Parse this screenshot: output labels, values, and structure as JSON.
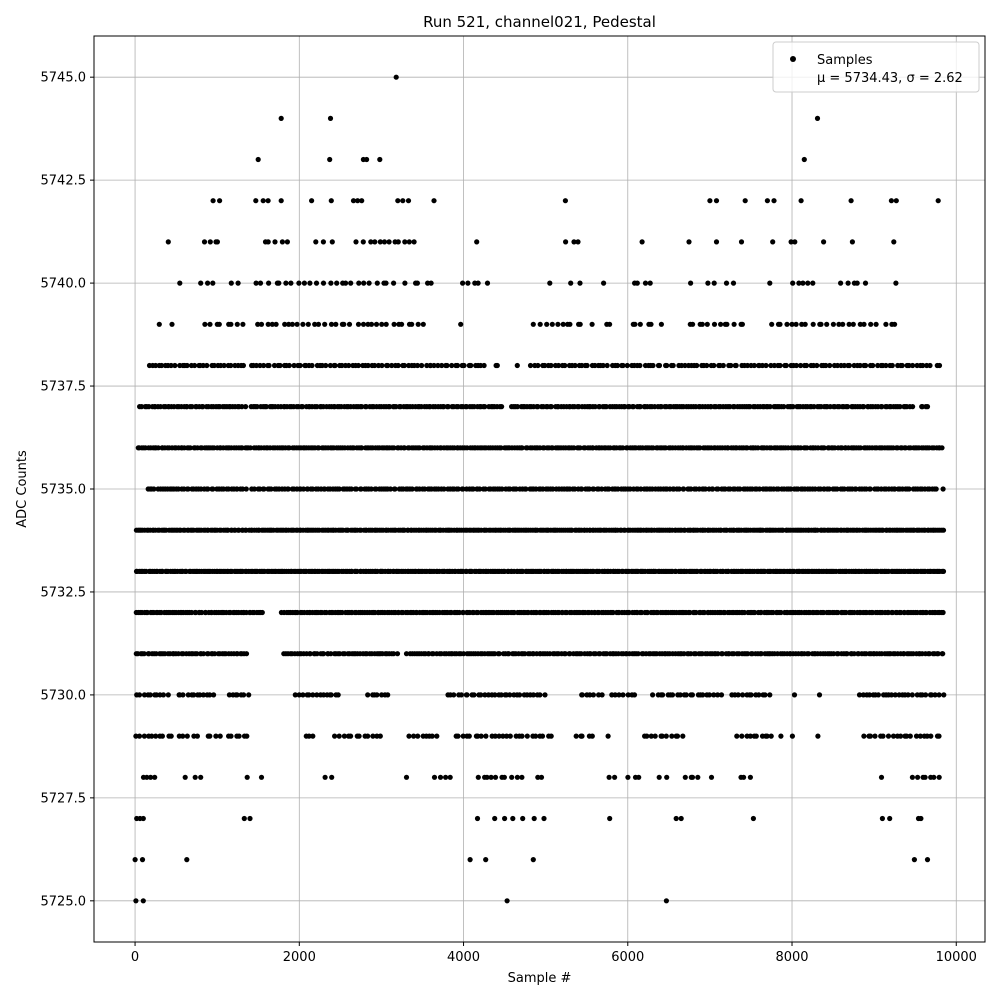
{
  "chart_data": {
    "type": "scatter",
    "title": "Run 521, channel021, Pedestal",
    "xlabel": "Sample #",
    "ylabel": "ADC Counts",
    "xlim": [
      -500,
      10350
    ],
    "ylim": [
      5724.0,
      5746.0
    ],
    "xticks": [
      0,
      2000,
      4000,
      6000,
      8000,
      10000
    ],
    "xtick_labels": [
      "0",
      "2000",
      "4000",
      "6000",
      "8000",
      "10000"
    ],
    "yticks": [
      5725.0,
      5727.5,
      5730.0,
      5732.5,
      5735.0,
      5737.5,
      5740.0,
      5742.5,
      5745.0
    ],
    "ytick_labels": [
      "5725.0",
      "5727.5",
      "5730.0",
      "5732.5",
      "5735.0",
      "5737.5",
      "5740.0",
      "5742.5",
      "5745.0"
    ],
    "grid": true,
    "legend_position": "top-right",
    "series": [
      {
        "name": "Samples",
        "color": "#000000",
        "marker": "circle",
        "stats_label": "μ = 5734.43, σ = 2.62",
        "points": [
          [
            3180,
            5745.0
          ],
          [
            1780,
            5744.0
          ],
          [
            2380,
            5744.0
          ],
          [
            8310,
            5744.0
          ],
          [
            1500,
            5743.0
          ],
          [
            2370,
            5743.0
          ],
          [
            2780,
            5743.0
          ],
          [
            2820,
            5743.0
          ],
          [
            2980,
            5743.0
          ],
          [
            8150,
            5743.0
          ],
          [
            950,
            5742.0
          ],
          [
            1030,
            5742.0
          ],
          [
            1470,
            5742.0
          ],
          [
            1560,
            5742.0
          ],
          [
            1620,
            5742.0
          ],
          [
            1780,
            5742.0
          ],
          [
            2150,
            5742.0
          ],
          [
            2390,
            5742.0
          ],
          [
            2660,
            5742.0
          ],
          [
            2710,
            5742.0
          ],
          [
            2760,
            5742.0
          ],
          [
            3200,
            5742.0
          ],
          [
            3260,
            5742.0
          ],
          [
            3330,
            5742.0
          ],
          [
            3640,
            5742.0
          ],
          [
            5240,
            5742.0
          ],
          [
            7000,
            5742.0
          ],
          [
            7080,
            5742.0
          ],
          [
            7430,
            5742.0
          ],
          [
            7700,
            5742.0
          ],
          [
            7780,
            5742.0
          ],
          [
            8110,
            5742.0
          ],
          [
            8720,
            5742.0
          ],
          [
            9210,
            5742.0
          ],
          [
            9270,
            5742.0
          ],
          [
            9780,
            5742.0
          ],
          [
            4530,
            5725.0
          ],
          [
            6470,
            5725.0
          ],
          [
            10,
            5725.0
          ],
          [
            100,
            5725.0
          ],
          [
            0,
            5726.0
          ],
          [
            90,
            5726.0
          ],
          [
            630,
            5726.0
          ],
          [
            4080,
            5726.0
          ],
          [
            4270,
            5726.0
          ],
          [
            4850,
            5726.0
          ],
          [
            9490,
            5726.0
          ],
          [
            9650,
            5726.0
          ],
          [
            20,
            5727.0
          ],
          [
            60,
            5727.0
          ],
          [
            100,
            5727.0
          ],
          [
            1330,
            5727.0
          ],
          [
            1400,
            5727.0
          ],
          [
            4170,
            5727.0
          ],
          [
            4380,
            5727.0
          ],
          [
            4500,
            5727.0
          ],
          [
            4600,
            5727.0
          ],
          [
            4720,
            5727.0
          ],
          [
            4860,
            5727.0
          ],
          [
            4980,
            5727.0
          ],
          [
            5780,
            5727.0
          ],
          [
            6590,
            5727.0
          ],
          [
            6650,
            5727.0
          ],
          [
            7530,
            5727.0
          ],
          [
            9100,
            5727.0
          ],
          [
            9190,
            5727.0
          ],
          [
            9540,
            5727.0
          ],
          [
            9570,
            5727.0
          ]
        ],
        "density_bands": [
          {
            "y": 5741.0,
            "x_ranges": [
              [
                400,
                410
              ],
              [
                820,
                1050
              ],
              [
                1550,
                1870
              ],
              [
                2200,
                2420
              ],
              [
                2690,
                3450
              ],
              [
                4120,
                4200
              ],
              [
                5240,
                5420
              ],
              [
                6170,
                6180
              ],
              [
                6740,
                6750
              ],
              [
                7060,
                7100
              ],
              [
                7380,
                7390
              ],
              [
                7730,
                7800
              ],
              [
                7950,
                8050
              ],
              [
                8380,
                8390
              ],
              [
                8690,
                8780
              ],
              [
                9210,
                9270
              ]
            ],
            "density": 0.35
          },
          {
            "y": 5740.0,
            "x_ranges": [
              [
                540,
                550
              ],
              [
                750,
                1000
              ],
              [
                1120,
                1300
              ],
              [
                1450,
                3200
              ],
              [
                3280,
                3650
              ],
              [
                3960,
                4320
              ],
              [
                5020,
                5080
              ],
              [
                5300,
                5450
              ],
              [
                5700,
                5710
              ],
              [
                6030,
                6300
              ],
              [
                6760,
                6770
              ],
              [
                6960,
                7100
              ],
              [
                7200,
                7320
              ],
              [
                7680,
                7780
              ],
              [
                7980,
                8320
              ],
              [
                8550,
                8920
              ],
              [
                9260,
                9270
              ]
            ],
            "density": 0.3
          },
          {
            "y": 5739.0,
            "x_ranges": [
              [
                290,
                300
              ],
              [
                420,
                480
              ],
              [
                830,
                1350
              ],
              [
                1450,
                3560
              ],
              [
                3960,
                3970
              ],
              [
                4840,
                5480
              ],
              [
                5540,
                5590
              ],
              [
                5700,
                5800
              ],
              [
                6020,
                6330
              ],
              [
                6400,
                6420
              ],
              [
                6710,
                7450
              ],
              [
                7720,
                9040
              ],
              [
                9140,
                9300
              ]
            ],
            "density": 0.35
          },
          {
            "y": 5738.0,
            "x_ranges": [
              [
                150,
                1350
              ],
              [
                1390,
                4280
              ],
              [
                4370,
                4440
              ],
              [
                4650,
                4660
              ],
              [
                4810,
                9700
              ],
              [
                9750,
                9830
              ]
            ],
            "density": 0.55
          },
          {
            "y": 5737.0,
            "x_ranges": [
              [
                50,
                1350
              ],
              [
                1400,
                4480
              ],
              [
                4570,
                9480
              ],
              [
                9560,
                9660
              ]
            ],
            "density": 0.8
          },
          {
            "y": 5736.0,
            "x_ranges": [
              [
                20,
                9850
              ]
            ],
            "density": 0.85
          },
          {
            "y": 5735.0,
            "x_ranges": [
              [
                140,
                1360
              ],
              [
                1420,
                9780
              ],
              [
                9830,
                9850
              ]
            ],
            "density": 0.75
          },
          {
            "y": 5734.0,
            "x_ranges": [
              [
                0,
                9860
              ]
            ],
            "density": 1.0
          },
          {
            "y": 5733.0,
            "x_ranges": [
              [
                0,
                9860
              ]
            ],
            "density": 1.0
          },
          {
            "y": 5732.0,
            "x_ranges": [
              [
                0,
                1570
              ],
              [
                1780,
                9860
              ]
            ],
            "density": 0.9
          },
          {
            "y": 5731.0,
            "x_ranges": [
              [
                0,
                1380
              ],
              [
                1800,
                3200
              ],
              [
                3300,
                9860
              ]
            ],
            "density": 0.8
          },
          {
            "y": 5730.0,
            "x_ranges": [
              [
                0,
                420
              ],
              [
                500,
                990
              ],
              [
                1120,
                1400
              ],
              [
                1950,
                2500
              ],
              [
                2820,
                3100
              ],
              [
                3800,
                5000
              ],
              [
                5400,
                5700
              ],
              [
                5800,
                6100
              ],
              [
                6300,
                7150
              ],
              [
                7250,
                7750
              ],
              [
                8000,
                8060
              ],
              [
                8330,
                8340
              ],
              [
                8800,
                9860
              ]
            ],
            "density": 0.55
          },
          {
            "y": 5729.0,
            "x_ranges": [
              [
                0,
                470
              ],
              [
                520,
                780
              ],
              [
                850,
                1050
              ],
              [
                1120,
                1400
              ],
              [
                2050,
                2200
              ],
              [
                2430,
                3000
              ],
              [
                3330,
                3700
              ],
              [
                3870,
                5100
              ],
              [
                5330,
                5600
              ],
              [
                5730,
                5790
              ],
              [
                6170,
                6700
              ],
              [
                7320,
                7790
              ],
              [
                7850,
                7880
              ],
              [
                8000,
                8010
              ],
              [
                8310,
                8320
              ],
              [
                8850,
                9830
              ]
            ],
            "density": 0.45
          },
          {
            "y": 5728.0,
            "x_ranges": [
              [
                80,
                280
              ],
              [
                600,
                620
              ],
              [
                720,
                820
              ],
              [
                1340,
                1390
              ],
              [
                1510,
                1570
              ],
              [
                2300,
                2410
              ],
              [
                3300,
                3310
              ],
              [
                3640,
                3850
              ],
              [
                4160,
                4720
              ],
              [
                4880,
                4980
              ],
              [
                5740,
                5860
              ],
              [
                5990,
                6180
              ],
              [
                6370,
                6500
              ],
              [
                6680,
                6880
              ],
              [
                6990,
                7050
              ],
              [
                7350,
                7500
              ],
              [
                9070,
                9110
              ],
              [
                9450,
                9830
              ]
            ],
            "density": 0.4
          }
        ]
      }
    ]
  }
}
